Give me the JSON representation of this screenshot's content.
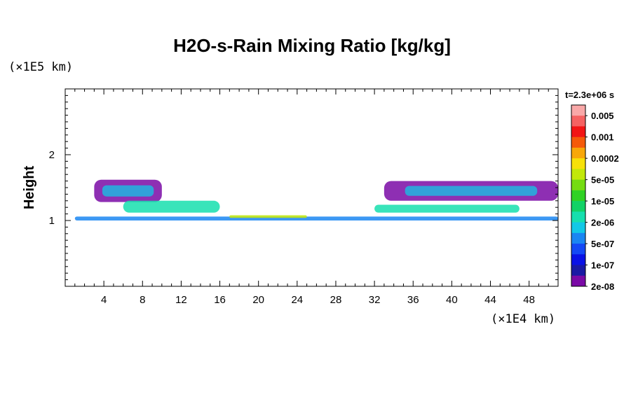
{
  "chart_data": {
    "type": "heatmap",
    "title": "H2O-s-Rain Mixing Ratio [kg/kg]",
    "xlabel": "",
    "ylabel": "Height",
    "x_unit_label": "(×1E4 km)",
    "y_unit_label": "(×1E5 km)",
    "time_label": "t=2.3e+06 s",
    "xlim": [
      0,
      51
    ],
    "ylim": [
      0,
      3
    ],
    "x_ticks": [
      4,
      8,
      12,
      16,
      20,
      24,
      28,
      32,
      36,
      40,
      44,
      48
    ],
    "y_ticks": [
      1,
      2
    ],
    "colorbar": {
      "labels": [
        "0.005",
        "0.001",
        "0.0002",
        "5e-05",
        "1e-05",
        "2e-06",
        "5e-07",
        "1e-07",
        "2e-08"
      ],
      "colors": [
        "#f9a8a8",
        "#f56262",
        "#f21515",
        "#f55a0a",
        "#f8a70a",
        "#f7e10a",
        "#c2e80a",
        "#75dc12",
        "#30d224",
        "#12d266",
        "#16dfae",
        "#12c8e6",
        "#1a86f2",
        "#1449f5",
        "#0a12e6",
        "#1a1aa4",
        "#7a0aa6"
      ]
    },
    "series": [
      {
        "x": [
          1,
          51
        ],
        "y": [
          1.0,
          1.06
        ],
        "level": "2e-06"
      },
      {
        "x": [
          17,
          25
        ],
        "y": [
          1.04,
          1.08
        ],
        "level": "0.0002"
      },
      {
        "x": [
          3,
          10
        ],
        "y": [
          1.28,
          1.62
        ],
        "level": "1e-07"
      },
      {
        "x": [
          33,
          51
        ],
        "y": [
          1.3,
          1.6
        ],
        "level": "1e-07"
      },
      {
        "x": [
          6,
          16
        ],
        "y": [
          1.12,
          1.3
        ],
        "level": "1e-05"
      },
      {
        "x": [
          32,
          47
        ],
        "y": [
          1.12,
          1.24
        ],
        "level": "1e-05"
      }
    ]
  }
}
